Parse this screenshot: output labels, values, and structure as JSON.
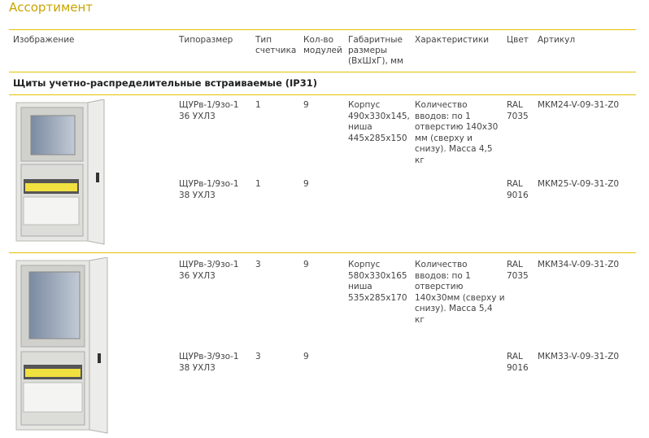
{
  "page_title": "Ассортимент",
  "columns": [
    "Изображение",
    "Типоразмер",
    "Тип\nсчетчика",
    "Кол-во\nмодулей",
    "Габаритные\nразмеры\n(ВхШхГ), мм",
    "Характеристики",
    "Цвет",
    "Артикул"
  ],
  "section_title": "Щиты учетно-распределительные встраиваемые (IP31)",
  "rows": [
    {
      "size": "ЩУРв-1/9зо-1\n36 УХЛ3",
      "meter": "1",
      "modules": "9",
      "dims": "Корпус\n490x330x145,\nниша\n445x285x150",
      "chars": "Количество\nвводов: по 1\nотверстию 140x30\nмм (сверху и\nснизу). Масса 4,5\nкг",
      "color": "RAL\n7035",
      "article": "MKM24-V-09-31-Z0"
    },
    {
      "size": "ЩУРв-1/9зо-1\n38 УХЛ3",
      "meter": "1",
      "modules": "9",
      "dims": "",
      "chars": "",
      "color": "RAL\n9016",
      "article": "MKM25-V-09-31-Z0"
    },
    {
      "size": "ЩУРв-3/9зо-1\n36 УХЛ3",
      "meter": "3",
      "modules": "9",
      "dims": "Корпус\n580x330x165\nниша\n535x285x170",
      "chars": "Количество\nвводов: по 1\nотверстию\n140x30мм (сверху и\nснизу). Масса 5,4\nкг",
      "color": "RAL\n7035",
      "article": "MKM34-V-09-31-Z0"
    },
    {
      "size": "ЩУРв-3/9зо-1\n38 УХЛ3",
      "meter": "3",
      "modules": "9",
      "dims": "",
      "chars": "",
      "color": "RAL\n9016",
      "article": "MKM33-V-09-31-Z0"
    }
  ],
  "colors": {
    "accent": "#c8a400",
    "rule": "#e6c200"
  }
}
